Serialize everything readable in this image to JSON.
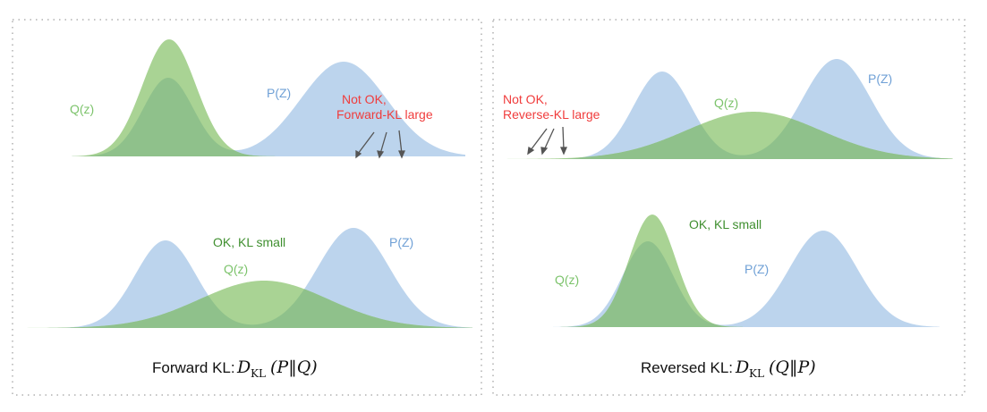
{
  "colors": {
    "p_fill": "#bcd4ed",
    "q_fill": "#a9d394",
    "overlap_fill": "#8fc18b",
    "p_text": "#6fa0d6",
    "q_text": "#7cc36b",
    "warn_text": "#f03c3c",
    "ok_text": "#3f8f2f",
    "border": "#b0b0b0"
  },
  "left_panel": {
    "top": {
      "q_label": "Q(z)",
      "p_label": "P(Z)",
      "warning_line1": "Not OK,",
      "warning_line2": "Forward-KL large"
    },
    "bottom": {
      "ok_label": "OK, KL small",
      "q_label": "Q(z)",
      "p_label": "P(Z)"
    },
    "caption_text": "Forward KL:",
    "caption_D": "D",
    "caption_sub": "KL",
    "caption_args": "(P‖Q)"
  },
  "right_panel": {
    "top": {
      "warning_line1": "Not OK,",
      "warning_line2": "Reverse-KL large",
      "q_label": "Q(z)",
      "p_label": "P(Z)"
    },
    "bottom": {
      "ok_label": "OK, KL small",
      "q_label": "Q(z)",
      "p_label": "P(Z)"
    },
    "caption_text": "Reversed KL:",
    "caption_D": "D",
    "caption_sub": "KL",
    "caption_args": "(Q‖P)"
  }
}
